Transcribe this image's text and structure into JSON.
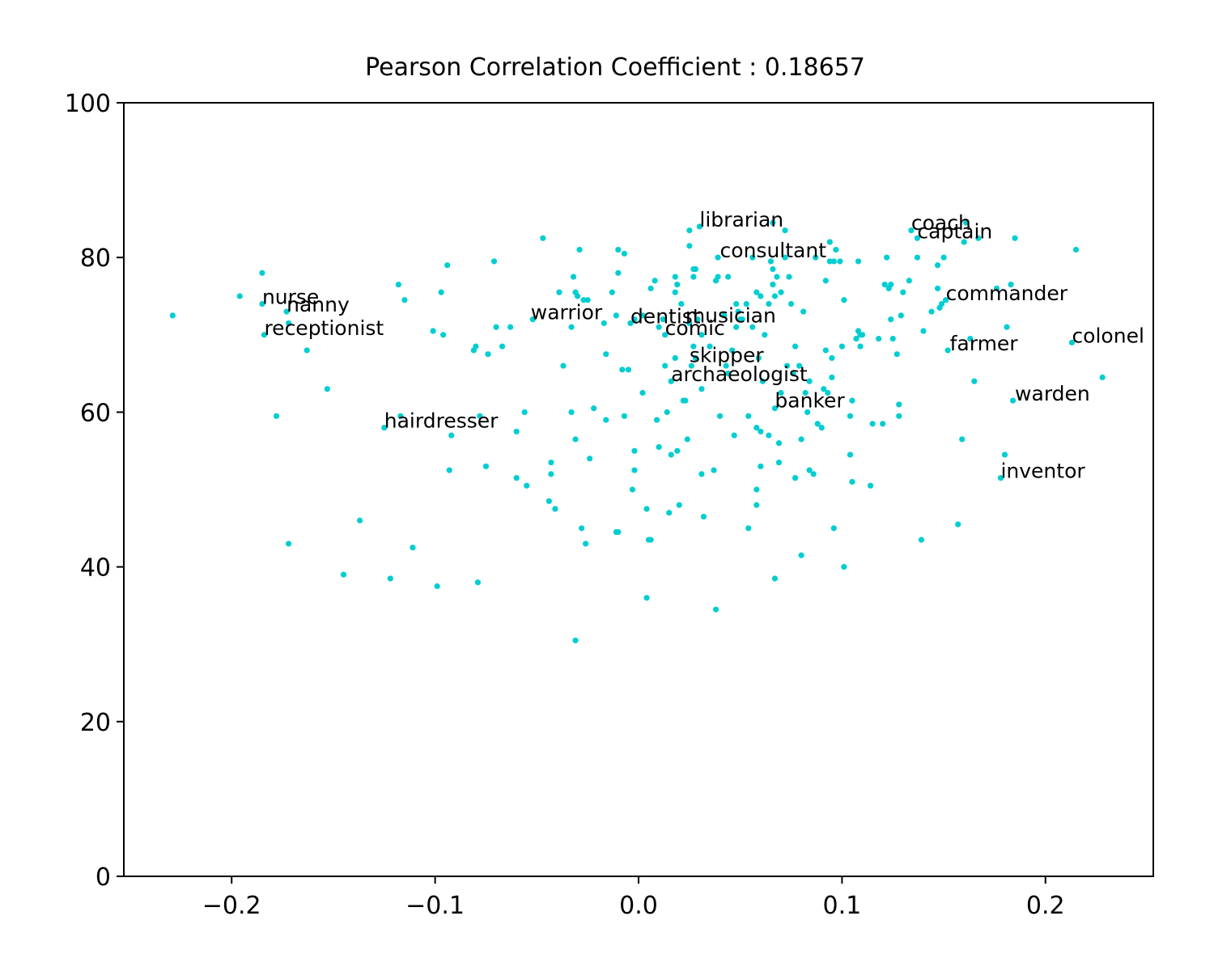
{
  "chart_data": {
    "type": "scatter",
    "title": "Pearson Correlation Coefficient : 0.18657",
    "xlabel": "",
    "ylabel": "",
    "xlim": [
      -0.253,
      0.253
    ],
    "ylim": [
      0,
      100
    ],
    "grid": false,
    "color": "#00CED1",
    "x_ticks": [
      -0.2,
      -0.1,
      0.0,
      0.1,
      0.2
    ],
    "x_tick_labels": [
      "−0.2",
      "−0.1",
      "0.0",
      "0.1",
      "0.2"
    ],
    "y_ticks": [
      0,
      20,
      40,
      60,
      80,
      100
    ],
    "y_tick_labels": [
      "0",
      "20",
      "40",
      "60",
      "80",
      "100"
    ],
    "annotations": [
      {
        "label": "librarian",
        "x": 0.03,
        "y": 84.0
      },
      {
        "label": "coach",
        "x": 0.134,
        "y": 83.6
      },
      {
        "label": "captain",
        "x": 0.137,
        "y": 82.5
      },
      {
        "label": "consultant",
        "x": 0.04,
        "y": 80.0
      },
      {
        "label": "nurse",
        "x": -0.185,
        "y": 74.0
      },
      {
        "label": "commander",
        "x": 0.151,
        "y": 74.5
      },
      {
        "label": "nanny",
        "x": -0.173,
        "y": 73.0
      },
      {
        "label": "warrior",
        "x": -0.053,
        "y": 72.0
      },
      {
        "label": "dentist",
        "x": -0.004,
        "y": 71.5
      },
      {
        "label": "musician",
        "x": 0.023,
        "y": 71.6
      },
      {
        "label": "receptionist",
        "x": -0.184,
        "y": 70.0
      },
      {
        "label": "comic",
        "x": 0.013,
        "y": 70.0
      },
      {
        "label": "colonel",
        "x": 0.213,
        "y": 69.0
      },
      {
        "label": "farmer",
        "x": 0.153,
        "y": 68.0
      },
      {
        "label": "skipper",
        "x": 0.025,
        "y": 66.5
      },
      {
        "label": "archaeologist",
        "x": 0.016,
        "y": 64.0
      },
      {
        "label": "banker",
        "x": 0.067,
        "y": 60.6
      },
      {
        "label": "warden",
        "x": 0.185,
        "y": 61.5
      },
      {
        "label": "hairdresser",
        "x": -0.125,
        "y": 58.0
      },
      {
        "label": "inventor",
        "x": 0.178,
        "y": 51.5
      }
    ],
    "points": [
      [
        -0.229,
        72.5
      ],
      [
        -0.196,
        75
      ],
      [
        -0.185,
        78
      ],
      [
        -0.185,
        74
      ],
      [
        -0.184,
        70
      ],
      [
        -0.178,
        59.5
      ],
      [
        -0.173,
        73
      ],
      [
        -0.172,
        71.5
      ],
      [
        -0.172,
        43
      ],
      [
        -0.163,
        68
      ],
      [
        -0.153,
        63
      ],
      [
        -0.145,
        39
      ],
      [
        -0.137,
        46
      ],
      [
        -0.125,
        58
      ],
      [
        -0.122,
        38.5
      ],
      [
        -0.118,
        76.5
      ],
      [
        -0.117,
        59.5
      ],
      [
        -0.115,
        74.5
      ],
      [
        -0.111,
        42.5
      ],
      [
        -0.101,
        70.5
      ],
      [
        -0.099,
        37.5
      ],
      [
        -0.097,
        75.5
      ],
      [
        -0.096,
        70
      ],
      [
        -0.094,
        79
      ],
      [
        -0.093,
        52.5
      ],
      [
        -0.092,
        57
      ],
      [
        -0.081,
        68
      ],
      [
        -0.08,
        68.5
      ],
      [
        -0.079,
        38
      ],
      [
        -0.078,
        59.5
      ],
      [
        -0.075,
        53
      ],
      [
        -0.074,
        67.5
      ],
      [
        -0.071,
        79.5
      ],
      [
        -0.07,
        71
      ],
      [
        -0.067,
        68.5
      ],
      [
        -0.063,
        71
      ],
      [
        -0.06,
        57.5
      ],
      [
        -0.06,
        51.5
      ],
      [
        -0.056,
        60
      ],
      [
        -0.055,
        50.5
      ],
      [
        -0.052,
        72
      ],
      [
        -0.047,
        82.5
      ],
      [
        -0.044,
        48.5
      ],
      [
        -0.043,
        53.5
      ],
      [
        -0.043,
        52
      ],
      [
        -0.041,
        47.5
      ],
      [
        -0.039,
        75.5
      ],
      [
        -0.037,
        66
      ],
      [
        -0.033,
        71
      ],
      [
        -0.033,
        60
      ],
      [
        -0.032,
        77.5
      ],
      [
        -0.031,
        75.5
      ],
      [
        -0.031,
        56.5
      ],
      [
        -0.031,
        30.5
      ],
      [
        -0.03,
        75
      ],
      [
        -0.029,
        81
      ],
      [
        -0.028,
        45
      ],
      [
        -0.027,
        74.5
      ],
      [
        -0.026,
        43
      ],
      [
        -0.025,
        74.5
      ],
      [
        -0.024,
        54
      ],
      [
        -0.022,
        60.5
      ],
      [
        -0.017,
        71.5
      ],
      [
        -0.016,
        67.5
      ],
      [
        -0.016,
        59
      ],
      [
        -0.013,
        75.5
      ],
      [
        -0.011,
        72.5
      ],
      [
        -0.011,
        44.5
      ],
      [
        -0.01,
        81
      ],
      [
        -0.01,
        78
      ],
      [
        -0.01,
        44.5
      ],
      [
        -0.008,
        65.5
      ],
      [
        -0.007,
        80.5
      ],
      [
        -0.007,
        59.5
      ],
      [
        -0.005,
        65.5
      ],
      [
        -0.004,
        71.5
      ],
      [
        -0.003,
        50
      ],
      [
        -0.002,
        72
      ],
      [
        -0.002,
        55
      ],
      [
        -0.002,
        52.5
      ],
      [
        0.002,
        72.5
      ],
      [
        0.002,
        62.5
      ],
      [
        0.004,
        47.5
      ],
      [
        0.004,
        36
      ],
      [
        0.005,
        43.5
      ],
      [
        0.006,
        76
      ],
      [
        0.006,
        43.5
      ],
      [
        0.008,
        77
      ],
      [
        0.009,
        59
      ],
      [
        0.01,
        71
      ],
      [
        0.01,
        55.5
      ],
      [
        0.012,
        72
      ],
      [
        0.013,
        70
      ],
      [
        0.013,
        66
      ],
      [
        0.014,
        60
      ],
      [
        0.015,
        47
      ],
      [
        0.016,
        64
      ],
      [
        0.016,
        54.5
      ],
      [
        0.018,
        77.5
      ],
      [
        0.018,
        75.5
      ],
      [
        0.018,
        67
      ],
      [
        0.019,
        76.5
      ],
      [
        0.019,
        55
      ],
      [
        0.02,
        48
      ],
      [
        0.021,
        74
      ],
      [
        0.022,
        61.5
      ],
      [
        0.023,
        61.5
      ],
      [
        0.024,
        56.5
      ],
      [
        0.025,
        83.5
      ],
      [
        0.025,
        81.5
      ],
      [
        0.025,
        71.5
      ],
      [
        0.026,
        66
      ],
      [
        0.027,
        78.5
      ],
      [
        0.027,
        77.5
      ],
      [
        0.027,
        68.5
      ],
      [
        0.028,
        78.5
      ],
      [
        0.028,
        67
      ],
      [
        0.029,
        72
      ],
      [
        0.03,
        84
      ],
      [
        0.031,
        70
      ],
      [
        0.031,
        63
      ],
      [
        0.031,
        52
      ],
      [
        0.032,
        46.5
      ],
      [
        0.035,
        68.5
      ],
      [
        0.037,
        52.5
      ],
      [
        0.038,
        77
      ],
      [
        0.038,
        34.5
      ],
      [
        0.039,
        80
      ],
      [
        0.039,
        77.5
      ],
      [
        0.04,
        59.5
      ],
      [
        0.042,
        72.5
      ],
      [
        0.043,
        66
      ],
      [
        0.044,
        77.5
      ],
      [
        0.044,
        65
      ],
      [
        0.046,
        68
      ],
      [
        0.047,
        57
      ],
      [
        0.048,
        74
      ],
      [
        0.048,
        71
      ],
      [
        0.049,
        73
      ],
      [
        0.05,
        72
      ],
      [
        0.051,
        72
      ],
      [
        0.053,
        74
      ],
      [
        0.054,
        59.5
      ],
      [
        0.054,
        45
      ],
      [
        0.056,
        80
      ],
      [
        0.056,
        71
      ],
      [
        0.058,
        75.5
      ],
      [
        0.058,
        58
      ],
      [
        0.058,
        50
      ],
      [
        0.058,
        48
      ],
      [
        0.059,
        67
      ],
      [
        0.06,
        75
      ],
      [
        0.06,
        57.5
      ],
      [
        0.06,
        53
      ],
      [
        0.061,
        64
      ],
      [
        0.062,
        70
      ],
      [
        0.064,
        74
      ],
      [
        0.064,
        57
      ],
      [
        0.065,
        79.5
      ],
      [
        0.066,
        78.5
      ],
      [
        0.066,
        84.5
      ],
      [
        0.066,
        76.5
      ],
      [
        0.067,
        75
      ],
      [
        0.067,
        60.5
      ],
      [
        0.067,
        38.5
      ],
      [
        0.068,
        77.5
      ],
      [
        0.069,
        56
      ],
      [
        0.069,
        53.5
      ],
      [
        0.07,
        75.5
      ],
      [
        0.07,
        62.5
      ],
      [
        0.072,
        83.5
      ],
      [
        0.072,
        80
      ],
      [
        0.073,
        66
      ],
      [
        0.074,
        77.5
      ],
      [
        0.075,
        74
      ],
      [
        0.076,
        65
      ],
      [
        0.077,
        68.5
      ],
      [
        0.077,
        51.5
      ],
      [
        0.079,
        66
      ],
      [
        0.08,
        56.5
      ],
      [
        0.08,
        41.5
      ],
      [
        0.081,
        73
      ],
      [
        0.082,
        62.5
      ],
      [
        0.083,
        60
      ],
      [
        0.084,
        52.5
      ],
      [
        0.084,
        64
      ],
      [
        0.086,
        52
      ],
      [
        0.087,
        80
      ],
      [
        0.088,
        58.5
      ],
      [
        0.09,
        58
      ],
      [
        0.091,
        63
      ],
      [
        0.092,
        68
      ],
      [
        0.092,
        77
      ],
      [
        0.093,
        62.5
      ],
      [
        0.094,
        82
      ],
      [
        0.094,
        79.5
      ],
      [
        0.095,
        67
      ],
      [
        0.095,
        64.5
      ],
      [
        0.096,
        79.5
      ],
      [
        0.096,
        45
      ],
      [
        0.097,
        81
      ],
      [
        0.099,
        79.5
      ],
      [
        0.1,
        68.5
      ],
      [
        0.101,
        74.5
      ],
      [
        0.101,
        40
      ],
      [
        0.104,
        54.5
      ],
      [
        0.104,
        59.5
      ],
      [
        0.105,
        61.5
      ],
      [
        0.105,
        51
      ],
      [
        0.107,
        69.5
      ],
      [
        0.108,
        79.5
      ],
      [
        0.108,
        70.5
      ],
      [
        0.109,
        70
      ],
      [
        0.109,
        68.5
      ],
      [
        0.11,
        70
      ],
      [
        0.114,
        50.5
      ],
      [
        0.115,
        58.5
      ],
      [
        0.118,
        69.5
      ],
      [
        0.12,
        58.5
      ],
      [
        0.121,
        76.5
      ],
      [
        0.122,
        80
      ],
      [
        0.123,
        76
      ],
      [
        0.124,
        76.5
      ],
      [
        0.124,
        72
      ],
      [
        0.125,
        69.5
      ],
      [
        0.127,
        67.5
      ],
      [
        0.128,
        61
      ],
      [
        0.128,
        59.5
      ],
      [
        0.129,
        72.5
      ],
      [
        0.13,
        75.5
      ],
      [
        0.133,
        77
      ],
      [
        0.134,
        83.5
      ],
      [
        0.137,
        82.5
      ],
      [
        0.137,
        80
      ],
      [
        0.139,
        43.5
      ],
      [
        0.14,
        70.5
      ],
      [
        0.144,
        73
      ],
      [
        0.147,
        76
      ],
      [
        0.147,
        79
      ],
      [
        0.148,
        73.5
      ],
      [
        0.149,
        74
      ],
      [
        0.15,
        80
      ],
      [
        0.151,
        74.5
      ],
      [
        0.152,
        68
      ],
      [
        0.157,
        45.5
      ],
      [
        0.159,
        56.5
      ],
      [
        0.16,
        82
      ],
      [
        0.161,
        84.5
      ],
      [
        0.165,
        64
      ],
      [
        0.167,
        82.5
      ],
      [
        0.176,
        76
      ],
      [
        0.178,
        51.5
      ],
      [
        0.18,
        54.5
      ],
      [
        0.181,
        71
      ],
      [
        0.183,
        76.5
      ],
      [
        0.184,
        61.5
      ],
      [
        0.185,
        82.5
      ],
      [
        0.213,
        69
      ],
      [
        0.215,
        81
      ],
      [
        0.228,
        64.5
      ],
      [
        0.163,
        69.5
      ]
    ]
  }
}
